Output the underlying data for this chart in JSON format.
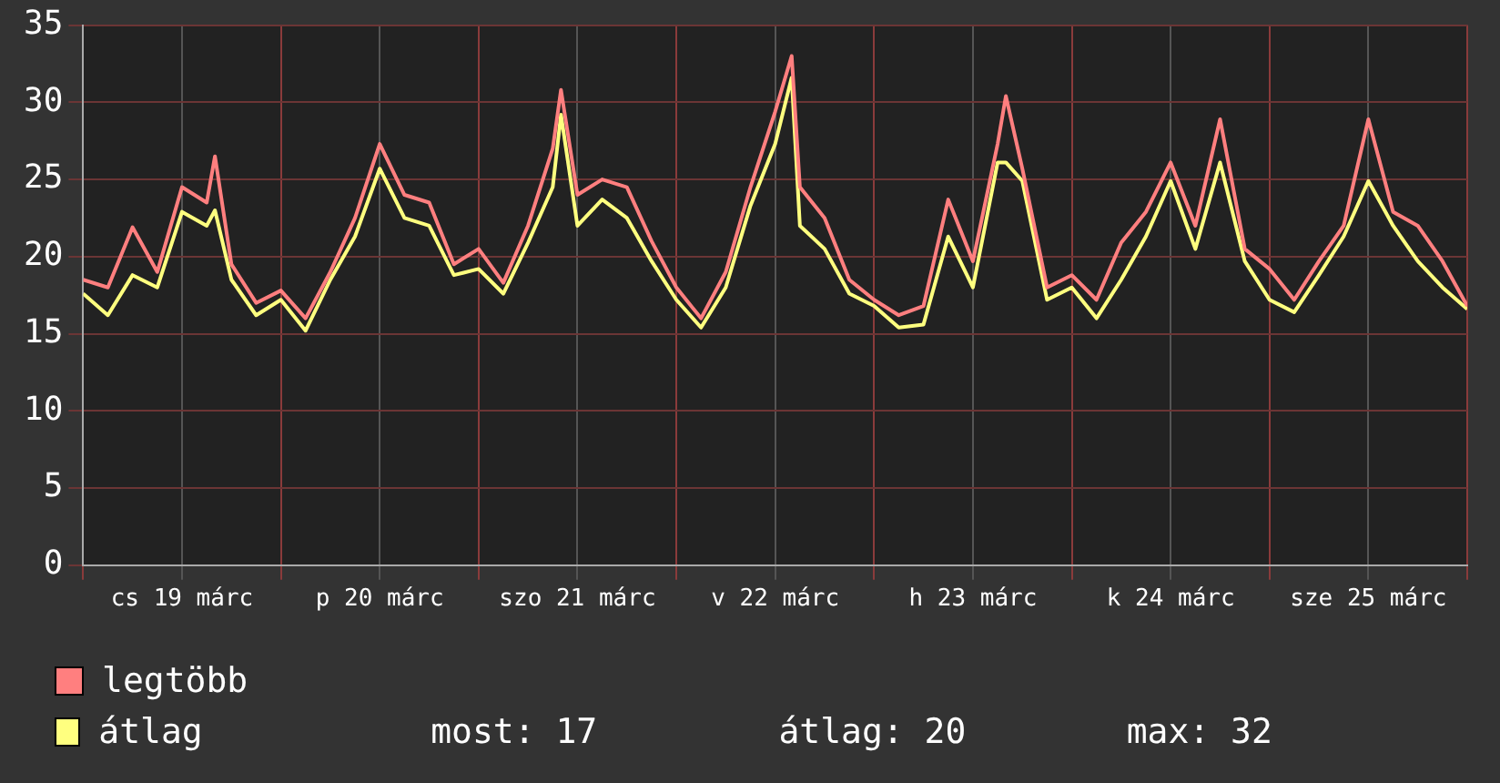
{
  "chart_data": {
    "type": "line",
    "x": [
      "--03-19T00:00",
      "--03-19T03:00",
      "--03-19T06:00",
      "--03-19T09:00",
      "--03-19T12:00",
      "--03-19T15:00",
      "--03-19T16:00",
      "--03-19T18:00",
      "--03-19T21:00",
      "--03-20T00:00",
      "--03-20T03:00",
      "--03-20T06:00",
      "--03-20T09:00",
      "--03-20T12:00",
      "--03-20T15:00",
      "--03-20T18:00",
      "--03-20T21:00",
      "--03-21T00:00",
      "--03-21T03:00",
      "--03-21T06:00",
      "--03-21T09:00",
      "--03-21T10:00",
      "--03-21T12:00",
      "--03-21T15:00",
      "--03-21T18:00",
      "--03-21T21:00",
      "--03-22T00:00",
      "--03-22T03:00",
      "--03-22T06:00",
      "--03-22T09:00",
      "--03-22T12:00",
      "--03-22T14:00",
      "--03-22T15:00",
      "--03-22T18:00",
      "--03-22T21:00",
      "--03-23T00:00",
      "--03-23T03:00",
      "--03-23T06:00",
      "--03-23T09:00",
      "--03-23T12:00",
      "--03-23T15:00",
      "--03-23T16:00",
      "--03-23T18:00",
      "--03-23T21:00",
      "--03-24T00:00",
      "--03-24T03:00",
      "--03-24T06:00",
      "--03-24T09:00",
      "--03-24T12:00",
      "--03-24T15:00",
      "--03-24T18:00",
      "--03-24T21:00",
      "--03-25T00:00",
      "--03-25T03:00",
      "--03-25T06:00",
      "--03-25T09:00",
      "--03-25T12:00",
      "--03-25T15:00",
      "--03-25T18:00",
      "--03-25T21:00",
      "--03-26T00:00"
    ],
    "series": [
      {
        "name": "legtöbb",
        "color": "#ff7f7f",
        "values": [
          18.5,
          18,
          21.9,
          19,
          24.5,
          23.5,
          26.5,
          19.5,
          17,
          17.8,
          16,
          19,
          22.5,
          27.3,
          24,
          23.5,
          19.5,
          20.5,
          18.3,
          22,
          27,
          30.8,
          24,
          25,
          24.5,
          21,
          18,
          16,
          19,
          24.5,
          29.4,
          33,
          24.5,
          22.5,
          18.5,
          17.2,
          16.2,
          16.8,
          23.7,
          19.7,
          27.3,
          30.4,
          25.7,
          18,
          18.8,
          17.2,
          20.9,
          22.9,
          26.1,
          22,
          28.9,
          20.5,
          19.2,
          17.2,
          19.7,
          22,
          28.9,
          22.9,
          22,
          19.7,
          16.8
        ]
      },
      {
        "name": "átlag",
        "color": "#ffff7f",
        "values": [
          17.6,
          16.2,
          18.8,
          18,
          22.9,
          22,
          23,
          18.5,
          16.2,
          17.2,
          15.2,
          18.5,
          21.3,
          25.7,
          22.5,
          22,
          18.8,
          19.2,
          17.6,
          20.9,
          24.5,
          29.2,
          22,
          23.7,
          22.5,
          19.7,
          17.2,
          15.4,
          18,
          23.3,
          27.3,
          31.6,
          22,
          20.5,
          17.6,
          16.8,
          15.4,
          15.6,
          21.3,
          18,
          26.1,
          26.1,
          24.9,
          17.2,
          18,
          16,
          18.5,
          21.3,
          24.9,
          20.5,
          26.1,
          19.7,
          17.2,
          16.4,
          18.8,
          21.3,
          24.9,
          22,
          19.7,
          18,
          16.6
        ]
      }
    ],
    "xlim": [
      "--03-19T00:00",
      "--03-26T00:00"
    ],
    "xticks": [
      {
        "value": "--03-19T00:00",
        "label": null
      },
      {
        "value": "--03-19T12:00",
        "label": "cs 19 márc"
      },
      {
        "value": "--03-20T00:00",
        "label": null
      },
      {
        "value": "--03-20T12:00",
        "label": "p 20 márc"
      },
      {
        "value": "--03-21T00:00",
        "label": null
      },
      {
        "value": "--03-21T12:00",
        "label": "szo 21 márc"
      },
      {
        "value": "--03-22T00:00",
        "label": null
      },
      {
        "value": "--03-22T12:00",
        "label": "v 22 márc"
      },
      {
        "value": "--03-23T00:00",
        "label": null
      },
      {
        "value": "--03-23T12:00",
        "label": "h 23 márc"
      },
      {
        "value": "--03-24T00:00",
        "label": null
      },
      {
        "value": "--03-24T12:00",
        "label": "k 24 márc"
      },
      {
        "value": "--03-25T00:00",
        "label": null
      },
      {
        "value": "--03-25T12:00",
        "label": "sze 25 márc"
      },
      {
        "value": "--03-26T00:00",
        "label": null
      }
    ],
    "ylim": [
      0,
      35
    ],
    "yticks": [
      0,
      5,
      10,
      15,
      20,
      25,
      30,
      35
    ],
    "grid": true,
    "legend": "bottom left",
    "marker": "none",
    "line_style": "solid",
    "annotations": [
      "most: 17",
      "átlag: 20",
      "max: 32"
    ]
  }
}
